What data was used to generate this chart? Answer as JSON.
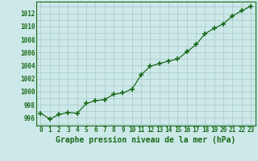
{
  "x": [
    0,
    1,
    2,
    3,
    4,
    5,
    6,
    7,
    8,
    9,
    10,
    11,
    12,
    13,
    14,
    15,
    16,
    17,
    18,
    19,
    20,
    21,
    22,
    23
  ],
  "y": [
    996.7,
    995.8,
    996.5,
    996.8,
    996.7,
    998.2,
    998.6,
    998.8,
    999.6,
    999.8,
    1000.4,
    1002.6,
    1003.9,
    1004.3,
    1004.7,
    1005.0,
    1006.1,
    1007.2,
    1008.9,
    1009.7,
    1010.4,
    1011.6,
    1012.4,
    1013.1
  ],
  "line_color": "#1a6b1a",
  "marker": "+",
  "marker_size": 4,
  "marker_lw": 1.2,
  "bg_color": "#cce8e8",
  "grid_color": "#a8c8c8",
  "xlabel": "Graphe pression niveau de la mer (hPa)",
  "xlabel_color": "#1a6b1a",
  "xlabel_fontsize": 7,
  "yticks": [
    996,
    998,
    1000,
    1002,
    1004,
    1006,
    1008,
    1010,
    1012
  ],
  "xticks": [
    0,
    1,
    2,
    3,
    4,
    5,
    6,
    7,
    8,
    9,
    10,
    11,
    12,
    13,
    14,
    15,
    16,
    17,
    18,
    19,
    20,
    21,
    22,
    23
  ],
  "ylim": [
    994.8,
    1013.8
  ],
  "xlim": [
    -0.5,
    23.5
  ],
  "tick_color": "#1a6b1a",
  "tick_fontsize": 5.5,
  "spine_color": "#1a6b1a",
  "line_width": 0.9
}
